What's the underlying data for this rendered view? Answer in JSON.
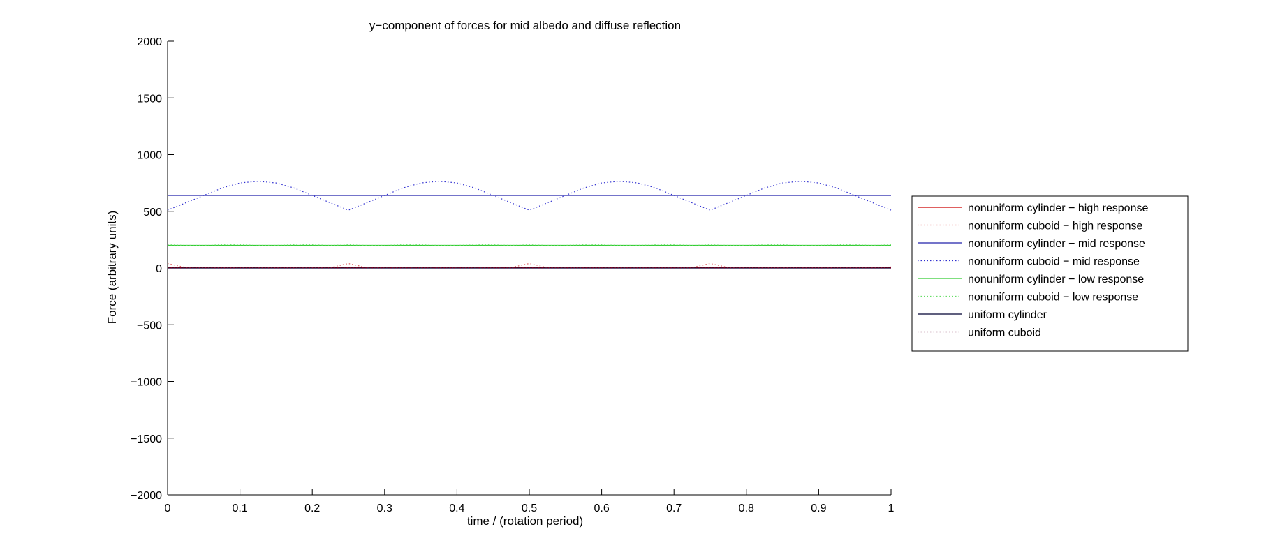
{
  "chart_data": {
    "type": "line",
    "title": "y−component of forces for mid  albedo and diffuse  reflection",
    "xlabel": "time / (rotation period)",
    "ylabel": "Force (arbitrary units)",
    "xlim": [
      0,
      1
    ],
    "ylim": [
      -2000,
      2000
    ],
    "xticks": [
      0,
      0.1,
      0.2,
      0.3,
      0.4,
      0.5,
      0.6,
      0.7,
      0.8,
      0.9,
      1
    ],
    "xtick_labels": [
      "0",
      "0.1",
      "0.2",
      "0.3",
      "0.4",
      "0.5",
      "0.6",
      "0.7",
      "0.8",
      "0.9",
      "1"
    ],
    "yticks": [
      -2000,
      -1500,
      -1000,
      -500,
      0,
      500,
      1000,
      1500,
      2000
    ],
    "ytick_labels": [
      "−2000",
      "−1500",
      "−1000",
      "−500",
      "0",
      "500",
      "1000",
      "1500",
      "2000"
    ],
    "grid": false,
    "legend_position": "outside-right",
    "x": [
      0,
      0.025,
      0.05,
      0.075,
      0.1,
      0.125,
      0.15,
      0.175,
      0.2,
      0.225,
      0.25,
      0.275,
      0.3,
      0.325,
      0.35,
      0.375,
      0.4,
      0.425,
      0.45,
      0.475,
      0.5,
      0.525,
      0.55,
      0.575,
      0.6,
      0.625,
      0.65,
      0.675,
      0.7,
      0.725,
      0.75,
      0.775,
      0.8,
      0.825,
      0.85,
      0.875,
      0.9,
      0.925,
      0.95,
      0.975,
      1
    ],
    "series": [
      {
        "name": "nonuniform cylinder − high response",
        "color": "#cc0000",
        "style": "solid",
        "values": [
          5,
          5,
          5,
          5,
          5,
          5,
          5,
          5,
          5,
          5,
          5,
          5,
          5,
          5,
          5,
          5,
          5,
          5,
          5,
          5,
          5,
          5,
          5,
          5,
          5,
          5,
          5,
          5,
          5,
          5,
          5,
          5,
          5,
          5,
          5,
          5,
          5,
          5,
          5,
          5,
          5
        ]
      },
      {
        "name": "nonuniform cuboid − high response",
        "color": "#e06060",
        "style": "dotted",
        "values": [
          40,
          5,
          5,
          5,
          5,
          5,
          5,
          5,
          5,
          5,
          40,
          5,
          5,
          5,
          5,
          5,
          5,
          5,
          5,
          5,
          40,
          5,
          5,
          5,
          5,
          5,
          5,
          5,
          5,
          5,
          40,
          5,
          5,
          5,
          5,
          5,
          5,
          5,
          5,
          5,
          10
        ]
      },
      {
        "name": "nonuniform cylinder − mid response",
        "color": "#2020aa",
        "style": "solid",
        "values": [
          640,
          640,
          640,
          640,
          640,
          640,
          640,
          640,
          640,
          640,
          640,
          640,
          640,
          640,
          640,
          640,
          640,
          640,
          640,
          640,
          640,
          640,
          640,
          640,
          640,
          640,
          640,
          640,
          640,
          640,
          640,
          640,
          640,
          640,
          640,
          640,
          640,
          640,
          640,
          640,
          640
        ]
      },
      {
        "name": "nonuniform cuboid − mid response",
        "color": "#3030d0",
        "style": "dotted",
        "values": [
          510,
          575,
          640,
          705,
          750,
          765,
          750,
          705,
          640,
          575,
          510,
          575,
          640,
          705,
          750,
          765,
          750,
          705,
          640,
          575,
          510,
          575,
          640,
          705,
          750,
          765,
          750,
          705,
          640,
          575,
          510,
          575,
          640,
          705,
          750,
          765,
          750,
          705,
          640,
          575,
          510
        ]
      },
      {
        "name": "nonuniform cylinder − low response",
        "color": "#33cc33",
        "style": "solid",
        "values": [
          200,
          200,
          200,
          200,
          200,
          200,
          200,
          200,
          200,
          200,
          200,
          200,
          200,
          200,
          200,
          200,
          200,
          200,
          200,
          200,
          200,
          200,
          200,
          200,
          200,
          200,
          200,
          200,
          200,
          200,
          200,
          200,
          200,
          200,
          200,
          200,
          200,
          200,
          200,
          200,
          200
        ]
      },
      {
        "name": "nonuniform cuboid − low response",
        "color": "#66dd66",
        "style": "dotted",
        "values": [
          205,
          200,
          200,
          205,
          205,
          200,
          200,
          205,
          205,
          200,
          205,
          200,
          200,
          205,
          205,
          200,
          200,
          205,
          205,
          200,
          205,
          200,
          200,
          205,
          205,
          200,
          200,
          205,
          205,
          200,
          205,
          200,
          200,
          205,
          205,
          200,
          200,
          205,
          205,
          200,
          205
        ]
      },
      {
        "name": "uniform cylinder",
        "color": "#000033",
        "style": "solid",
        "values": [
          0,
          0,
          0,
          0,
          0,
          0,
          0,
          0,
          0,
          0,
          0,
          0,
          0,
          0,
          0,
          0,
          0,
          0,
          0,
          0,
          0,
          0,
          0,
          0,
          0,
          0,
          0,
          0,
          0,
          0,
          0,
          0,
          0,
          0,
          0,
          0,
          0,
          0,
          0,
          0,
          0
        ]
      },
      {
        "name": "uniform cuboid",
        "color": "#660033",
        "style": "dotted",
        "values": [
          0,
          0,
          0,
          0,
          0,
          0,
          0,
          0,
          0,
          0,
          0,
          0,
          0,
          0,
          0,
          0,
          0,
          0,
          0,
          0,
          0,
          0,
          0,
          0,
          0,
          0,
          0,
          0,
          0,
          0,
          0,
          0,
          0,
          0,
          0,
          0,
          0,
          0,
          0,
          0,
          0
        ]
      }
    ]
  }
}
